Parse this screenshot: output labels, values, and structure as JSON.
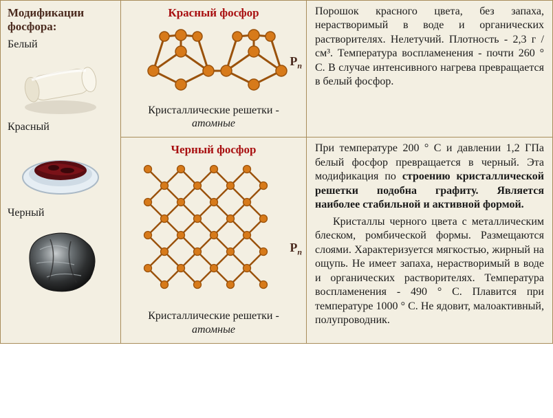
{
  "left": {
    "header": "Модификации фосфора:",
    "white_label": "Белый",
    "red_label": "Красный",
    "black_label": "Черный"
  },
  "row_red": {
    "title": "Красный фосфор",
    "caption_prefix": "Кристаллические решетки - ",
    "caption_italic": "атомные",
    "formula_base": "P",
    "formula_sub": "n",
    "desc": "Порошок красного цвета, без запаха, нерастворимый в воде и органических растворителях. Нелетучий. Плотность - 2,3 г / см³. Температура воспламенения - почти 260 ° С. В случае интенсивного нагрева превращается в белый фосфор."
  },
  "row_black": {
    "title": "Черный фосфор",
    "caption_prefix": "Кристаллические решетки - ",
    "caption_italic": "атомные",
    "formula_base": "P",
    "formula_sub": "n",
    "desc1_plain": "При температуре 200 ° С и давлении 1,2 ГПа белый фосфор превращается в черный. Эта модификация по ",
    "desc1_bold": "строению кристаллической решетки подобна графиту. Является наиболее стабильной и активной формой.",
    "desc2": "Кристаллы черного цвета с металлическим блеском, ромбической формы. Размещаются слоями. Характеризуется мягкостью, жирный на ощупь. Не имеет запаха, нерастворимый в воде и органических растворителях. Температура воспламенения - 490 ° С. Плавится при температуре 1000 ° С. Не ядовит, малоактивный, полупроводник."
  },
  "colors": {
    "cell_bg": "#f3efe2",
    "border": "#a88c5a",
    "title_red": "#a80f10",
    "atom_fill": "#d77a1a",
    "atom_stroke": "#9a520c"
  }
}
